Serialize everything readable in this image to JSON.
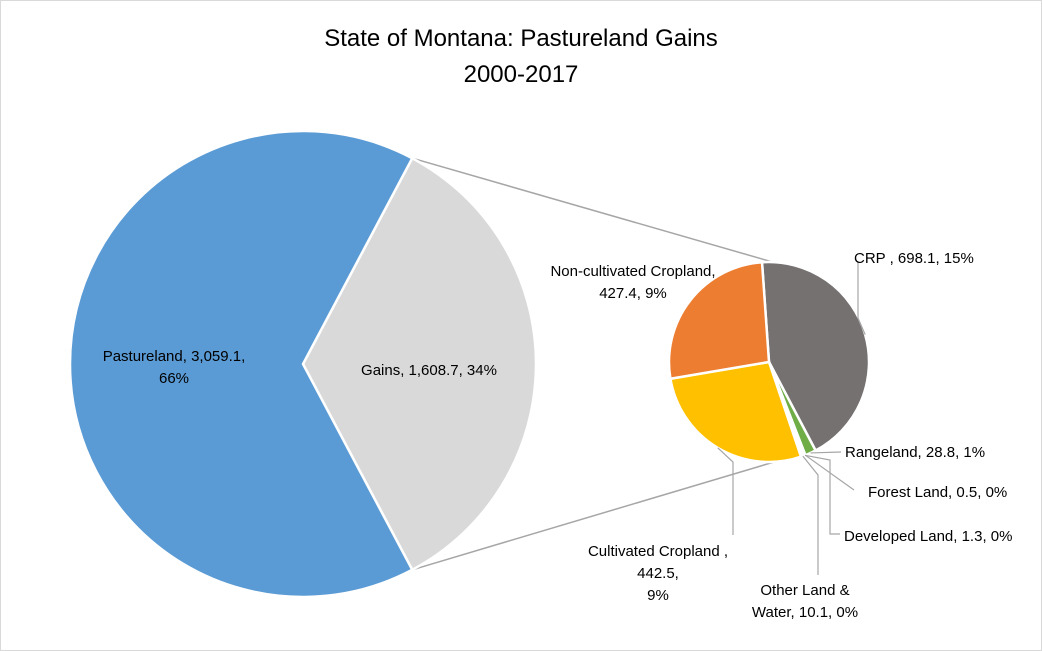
{
  "chart_data": {
    "type": "pie",
    "subtype": "pie-of-pie",
    "title_lines": [
      "State of Montana: Pastureland Gains",
      "2000-2017"
    ],
    "main_pie": {
      "slices": [
        {
          "key": "pastureland",
          "name": "Pastureland",
          "value": 3059.1,
          "percent": 66,
          "color": "#5b9bd5",
          "label_lines": [
            "Pastureland, 3,059.1,",
            "66%"
          ]
        },
        {
          "key": "gains",
          "name": "Gains",
          "value": 1608.7,
          "percent": 34,
          "color": "#d9d9d9",
          "label_lines": [
            "Gains, 1,608.7, 34%"
          ]
        }
      ]
    },
    "secondary_pie": {
      "slices": [
        {
          "key": "crp",
          "name": "CRP ",
          "value": 698.1,
          "percent": 15,
          "color": "#767171",
          "label_lines": [
            "CRP , 698.1, 15%"
          ]
        },
        {
          "key": "rangeland",
          "name": "Rangeland",
          "value": 28.8,
          "percent": 1,
          "color": "#70ad47",
          "label_lines": [
            "Rangeland, 28.8, 1%"
          ]
        },
        {
          "key": "forest",
          "name": "Forest Land",
          "value": 0.5,
          "percent": 0,
          "color": "#264478",
          "label_lines": [
            "Forest Land, 0.5, 0%"
          ]
        },
        {
          "key": "developed",
          "name": "Developed Land",
          "value": 1.3,
          "percent": 0,
          "color": "#9e480e",
          "label_lines": [
            "Developed Land, 1.3, 0%"
          ]
        },
        {
          "key": "other",
          "name": "Other Land & Water",
          "value": 10.1,
          "percent": 0,
          "color": "#ffffff",
          "label_lines": [
            "Other Land &",
            "Water, 10.1, 0%"
          ]
        },
        {
          "key": "cultivated",
          "name": "Cultivated Cropland ",
          "value": 442.5,
          "percent": 9,
          "color": "#ffc000",
          "label_lines": [
            "Cultivated Cropland ,",
            "442.5,",
            "9%"
          ]
        },
        {
          "key": "noncultivated",
          "name": "Non-cultivated Cropland",
          "value": 427.4,
          "percent": 9,
          "color": "#ed7d31",
          "label_lines": [
            "Non-cultivated Cropland,",
            "427.4, 9%"
          ]
        }
      ]
    },
    "legend": "none",
    "grid": false
  }
}
